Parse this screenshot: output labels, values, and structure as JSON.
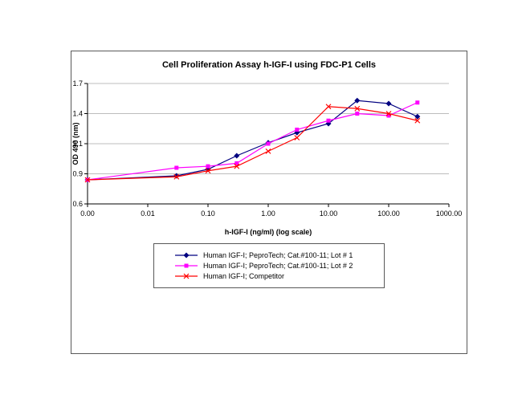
{
  "chart": {
    "title": "Cell Proliferation Assay h-IGF-I using FDC-P1 Cells"
  },
  "chart_data": {
    "type": "line",
    "title": "Cell Proliferation Assay h-IGF-I using FDC-P1 Cells",
    "xlabel": "h-IGF-I (ng/ml) (log scale)",
    "ylabel": "OD 490 (nm)",
    "x_scale": "log",
    "x_tick_labels": [
      "0.00",
      "0.01",
      "0.10",
      "1.00",
      "10.00",
      "100.00",
      "1000.00"
    ],
    "x_tick_values": [
      0.001,
      0.01,
      0.1,
      1,
      10,
      100,
      1000
    ],
    "y_ticks": [
      0.6,
      0.9,
      1.1,
      1.4,
      1.7
    ],
    "y_tick_labels": [
      "0.6",
      "0.9",
      "1.1",
      "1.4",
      "1.7"
    ],
    "grid": "horizontal",
    "legend_position": "bottom",
    "x": [
      0.001,
      0.03,
      0.1,
      0.3,
      1,
      3,
      10,
      30,
      100,
      300
    ],
    "series": [
      {
        "name": "Human IGF-I; PeproTech; Cat.#100-11; Lot # 1",
        "color": "#000080",
        "marker": "diamond",
        "values": [
          0.84,
          0.88,
          0.93,
          1.02,
          1.11,
          1.21,
          1.3,
          1.53,
          1.5,
          1.37
        ]
      },
      {
        "name": "Human IGF-I; PeproTech; Cat.#100-11; Lot # 2",
        "color": "#FF00FF",
        "marker": "square",
        "values": [
          0.84,
          0.94,
          0.95,
          0.97,
          1.1,
          1.24,
          1.33,
          1.4,
          1.38,
          1.51
        ]
      },
      {
        "name": "Human IGF-I; Competitor",
        "color": "#FF0000",
        "marker": "x",
        "values": [
          0.84,
          0.87,
          0.92,
          0.95,
          1.05,
          1.16,
          1.47,
          1.45,
          1.4,
          1.33
        ]
      }
    ]
  }
}
